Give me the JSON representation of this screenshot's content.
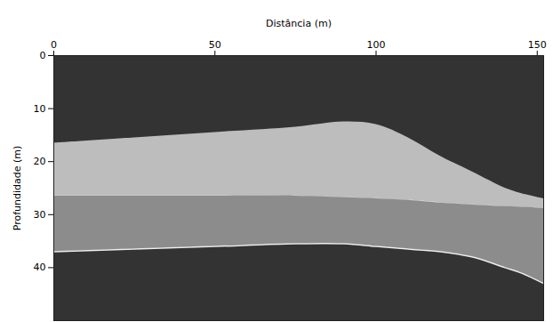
{
  "chart_data": {
    "type": "area",
    "x_label": "Distância (m)",
    "y_label": "Profundidade (m)",
    "xlim": [
      0,
      152
    ],
    "xticks": [
      0,
      50,
      100,
      150
    ],
    "ylim": [
      0,
      50
    ],
    "yticks": [
      0,
      10,
      20,
      30,
      40
    ],
    "grid": false,
    "series": [
      {
        "color": "#bdbdbd",
        "x": [
          0,
          25,
          50,
          75,
          90,
          100,
          110,
          120,
          130,
          140,
          145,
          152
        ],
        "top": [
          16.5,
          15.5,
          14.5,
          13.5,
          12.5,
          13,
          15.5,
          19,
          22,
          25,
          26,
          27
        ],
        "bottom": [
          26.5,
          26.5,
          26.5,
          26.5,
          26.8,
          27,
          27.3,
          27.8,
          28.2,
          28.5,
          28.6,
          28.8
        ]
      },
      {
        "color": "#8c8c8c",
        "x": [
          0,
          25,
          50,
          75,
          90,
          100,
          110,
          120,
          130,
          140,
          145,
          152
        ],
        "top": [
          26.5,
          26.5,
          26.5,
          26.5,
          26.8,
          27,
          27.3,
          27.8,
          28.2,
          28.5,
          28.6,
          28.8
        ],
        "bottom": [
          37,
          36.5,
          36,
          35.5,
          35.5,
          36,
          36.5,
          37,
          38,
          40,
          41,
          43
        ]
      }
    ]
  }
}
